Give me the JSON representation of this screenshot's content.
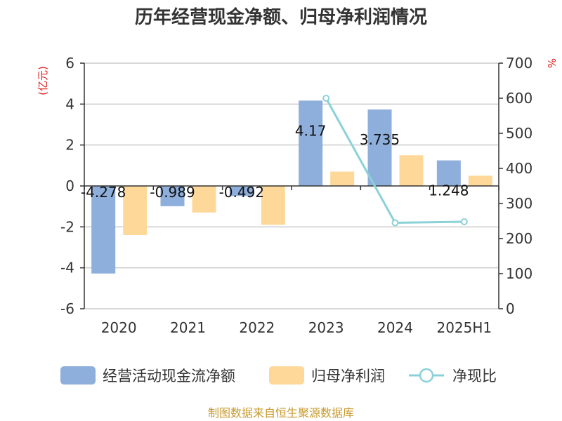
{
  "chart_data": {
    "type": "bar",
    "title": "历年经营现金净额、归母净利润情况",
    "categories": [
      "2020",
      "2021",
      "2022",
      "2023",
      "2024",
      "2025H1"
    ],
    "y_left": {
      "unit": "(亿元)",
      "ylim": [
        -6,
        6
      ],
      "ticks": [
        -6,
        -4,
        -2,
        0,
        2,
        4,
        6
      ]
    },
    "y_right": {
      "unit": "%",
      "ylim": [
        0,
        700
      ],
      "ticks": [
        0,
        100,
        200,
        300,
        400,
        500,
        600,
        700
      ]
    },
    "grid": true,
    "legend_position": "bottom",
    "series": [
      {
        "name": "经营活动现金流净额",
        "type": "bar",
        "axis": "left",
        "color": "#8eaedb",
        "values": [
          -4.278,
          -0.989,
          -0.492,
          4.17,
          3.735,
          1.248
        ],
        "labels": [
          "-4.278",
          "-0.989",
          "-0.492",
          "4.17",
          "3.735",
          "1.248"
        ]
      },
      {
        "name": "归母净利润",
        "type": "bar",
        "axis": "left",
        "color": "#fed898",
        "values": [
          -2.4,
          -1.3,
          -1.9,
          0.7,
          1.5,
          0.5
        ]
      },
      {
        "name": "净现比",
        "type": "line",
        "axis": "right",
        "color": "#8ad1d8",
        "values": [
          null,
          null,
          null,
          600,
          245,
          248
        ]
      }
    ]
  },
  "source": "制图数据来自恒生聚源数据库"
}
